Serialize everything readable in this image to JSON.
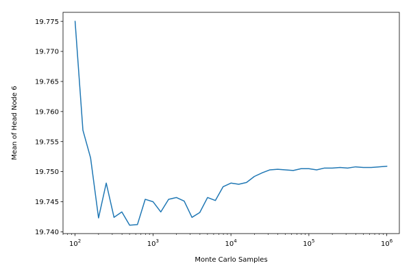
{
  "chart_data": {
    "type": "line",
    "xlabel": "Monte Carlo Samples",
    "ylabel": "Mean of Head Node 6",
    "x_scale": "log",
    "xlim": [
      70,
      1450000
    ],
    "ylim": [
      19.7397,
      19.7765
    ],
    "grid": false,
    "x_major_ticks": [
      {
        "value": 100,
        "base": "10",
        "exp": "2"
      },
      {
        "value": 1000,
        "base": "10",
        "exp": "3"
      },
      {
        "value": 10000,
        "base": "10",
        "exp": "4"
      },
      {
        "value": 100000,
        "base": "10",
        "exp": "5"
      },
      {
        "value": 1000000,
        "base": "10",
        "exp": "6"
      }
    ],
    "y_ticks": [
      {
        "value": 19.74,
        "label": "19.740"
      },
      {
        "value": 19.745,
        "label": "19.745"
      },
      {
        "value": 19.75,
        "label": "19.750"
      },
      {
        "value": 19.755,
        "label": "19.755"
      },
      {
        "value": 19.76,
        "label": "19.760"
      },
      {
        "value": 19.765,
        "label": "19.765"
      },
      {
        "value": 19.77,
        "label": "19.770"
      },
      {
        "value": 19.775,
        "label": "19.775"
      }
    ],
    "series": [
      {
        "color": "#1f77b4",
        "x": [
          100,
          126,
          158,
          200,
          251,
          316,
          398,
          501,
          631,
          794,
          1000,
          1259,
          1585,
          1995,
          2512,
          3162,
          3981,
          5012,
          6310,
          7943,
          10000,
          12589,
          15849,
          19953,
          25119,
          31623,
          39811,
          50119,
          63096,
          79433,
          100000,
          125893,
          158489,
          199526,
          251189,
          316228,
          398107,
          501187,
          630957,
          794328,
          1000000
        ],
        "y": [
          19.775,
          19.7569,
          19.7523,
          19.7423,
          19.7481,
          19.7424,
          19.7433,
          19.7411,
          19.7412,
          19.7454,
          19.745,
          19.7433,
          19.7454,
          19.7457,
          19.7451,
          19.7424,
          19.7432,
          19.7457,
          19.7452,
          19.7475,
          19.7481,
          19.7479,
          19.7482,
          19.7492,
          19.7498,
          19.7503,
          19.7504,
          19.7503,
          19.7502,
          19.7505,
          19.7505,
          19.7503,
          19.7506,
          19.7506,
          19.7507,
          19.7506,
          19.7508,
          19.7507,
          19.7507,
          19.7508,
          19.7509
        ]
      }
    ]
  }
}
